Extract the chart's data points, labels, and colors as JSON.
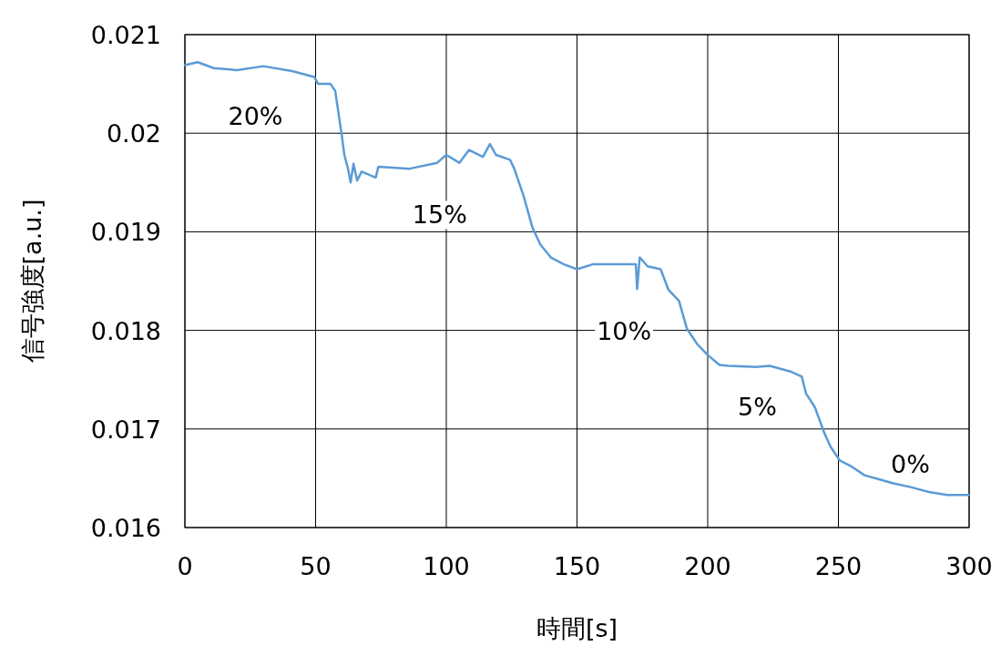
{
  "chart_data": {
    "type": "line",
    "xlabel": "時間[s]",
    "ylabel": "信号強度[a.u.]",
    "xlim": [
      0,
      300
    ],
    "xticks": [
      0,
      50,
      100,
      150,
      200,
      250,
      300
    ],
    "ylim": [
      0.016,
      0.021
    ],
    "yticks": [
      0.016,
      0.017,
      0.018,
      0.019,
      0.02,
      0.021
    ],
    "grid": true,
    "series": [
      {
        "color": "#5b9bd5",
        "x": [
          0,
          4.9,
          11,
          20,
          30,
          41,
          49.5,
          51,
          55.7,
          57.5,
          60,
          61,
          62.4,
          63.4,
          64.5,
          65.9,
          67.6,
          73,
          74,
          86,
          96.5,
          100,
          105,
          108.7,
          114,
          116.7,
          119,
          124.4,
          126,
          129.6,
          133,
          136,
          140,
          145,
          150,
          156,
          166,
          172.5,
          173,
          174,
          177,
          182,
          185,
          189,
          192,
          196,
          200,
          204.5,
          208,
          218.5,
          223.7,
          232,
          236,
          237.6,
          241,
          244.6,
          247,
          250.5,
          255,
          260,
          265.5,
          270.7,
          277.7,
          284.7,
          291.6,
          300
        ],
        "values": [
          0.02069,
          0.02072,
          0.02066,
          0.02064,
          0.02068,
          0.02063,
          0.02057,
          0.0205,
          0.0205,
          0.02043,
          0.01998,
          0.01978,
          0.01964,
          0.0195,
          0.01969,
          0.01952,
          0.01961,
          0.01955,
          0.01966,
          0.01964,
          0.0197,
          0.01978,
          0.0197,
          0.01983,
          0.01976,
          0.01989,
          0.01978,
          0.01973,
          0.01964,
          0.01936,
          0.01904,
          0.01887,
          0.01874,
          0.01867,
          0.01862,
          0.01867,
          0.01867,
          0.01867,
          0.01842,
          0.01874,
          0.01865,
          0.01862,
          0.01841,
          0.0183,
          0.01802,
          0.01786,
          0.01775,
          0.01765,
          0.01764,
          0.01763,
          0.01764,
          0.01758,
          0.01753,
          0.01736,
          0.01722,
          0.01696,
          0.01682,
          0.01668,
          0.01662,
          0.01653,
          0.01649,
          0.01645,
          0.01641,
          0.01636,
          0.01633,
          0.01633
        ]
      }
    ],
    "annotations": [
      "20%",
      "15%",
      "10%",
      "5%",
      "0%"
    ]
  }
}
